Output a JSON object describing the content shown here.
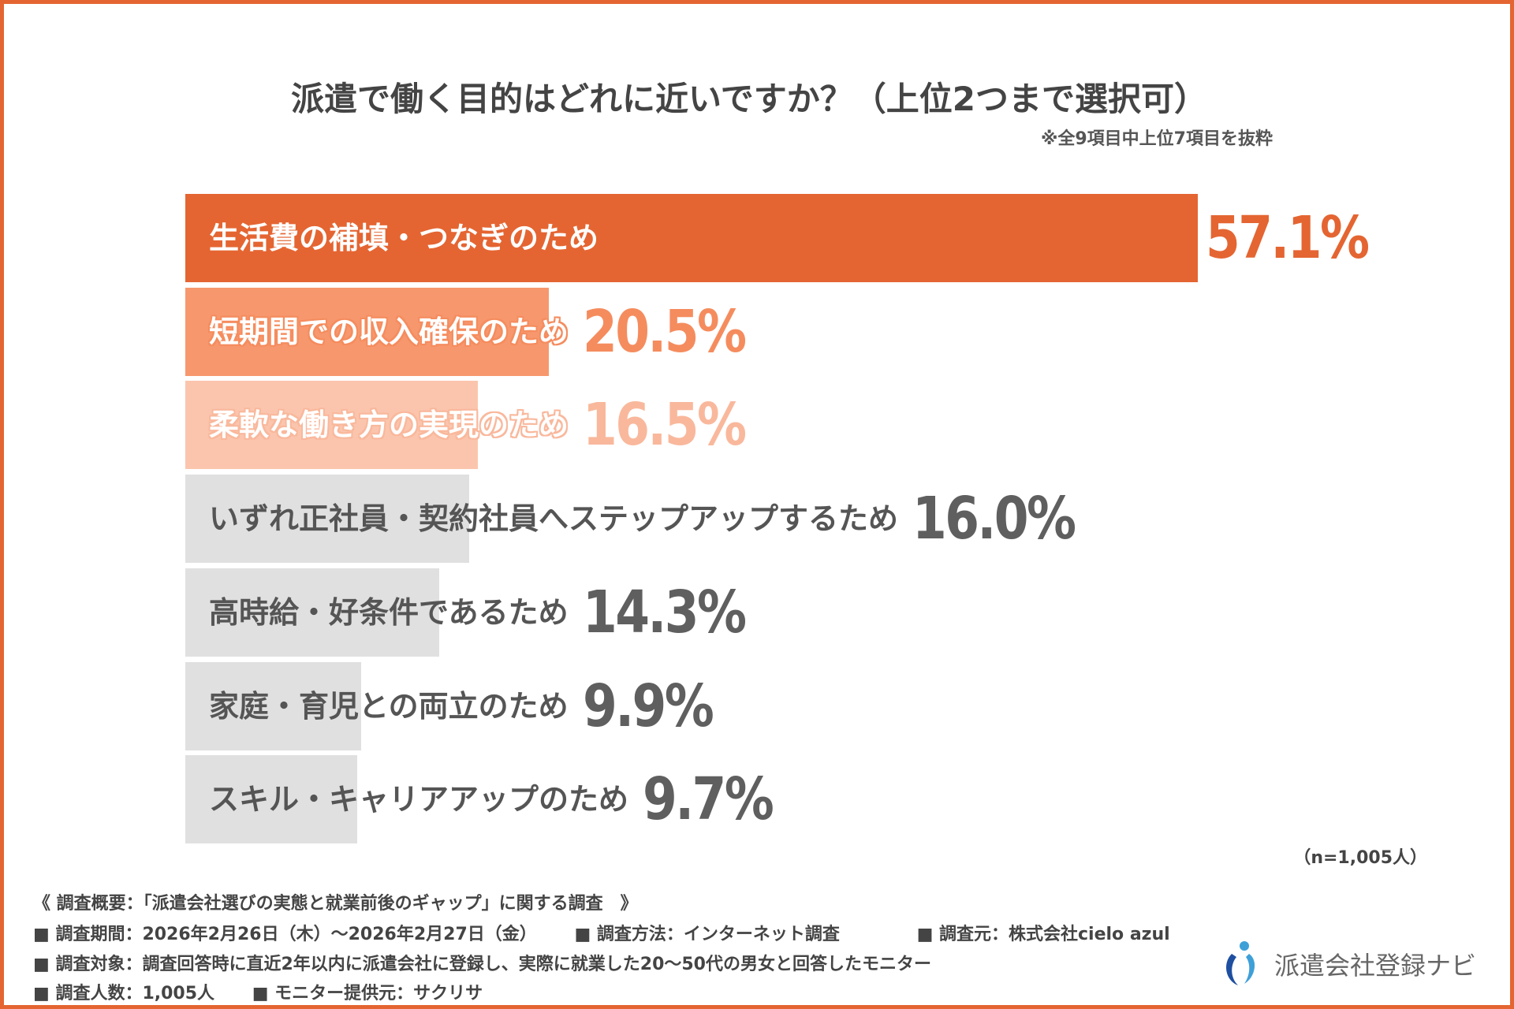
{
  "title": "派遣で働く目的はどれに近いですか？（上位2つまで選択可）",
  "note": "※全9項目中上位7項目を抜粋",
  "sample": "（n=1,005人）",
  "chart_data": {
    "type": "bar",
    "orientation": "horizontal",
    "title": "派遣で働く目的はどれに近いですか？（上位2つまで選択可）",
    "categories": [
      "生活費の補填・つなぎのため",
      "短期間での収入確保のため",
      "柔軟な働き方の実現のため",
      "いずれ正社員・契約社員へステップアップするため",
      "高時給・好条件であるため",
      "家庭・育児との両立のため",
      "スキル・キャリアアップのため"
    ],
    "values": [
      57.1,
      20.5,
      16.5,
      16.0,
      14.3,
      9.9,
      9.7
    ],
    "labels": [
      "57.1%",
      "20.5%",
      "16.5%",
      "16.0%",
      "14.3%",
      "9.9%",
      "9.7%"
    ],
    "unit": "%",
    "bar_colors": [
      "#E46532",
      "#F7976D",
      "#FBC5AD",
      "#E0E0E0",
      "#E0E0E0",
      "#E0E0E0",
      "#E0E0E0"
    ],
    "value_colors": [
      "#E46532",
      "#F58C5E",
      "#F9B89C",
      "#5f5f5f",
      "#5f5f5f",
      "#5f5f5f",
      "#5f5f5f"
    ],
    "label_colors": [
      "#ffffff",
      "#ffffff",
      "#ffffff",
      "#555555",
      "#555555",
      "#555555",
      "#555555"
    ],
    "grid": false,
    "legend": "none"
  },
  "footer": {
    "heading": "《 調査概要：「派遣会社選びの実態と就業前後のギャップ」に関する調査　》",
    "period": "■ 調査期間：2026年2月26日（木）～2026年2月27日（金）",
    "method": "■ 調査方法：インターネット調査",
    "source": "■ 調査元：株式会社cielo azul",
    "target": "■ 調査対象：調査回答時に直近2年以内に派遣会社に登録し、実際に就業した20～50代の男女と回答したモニター",
    "count": "■ 調査人数：1,005人",
    "provider": "■ モニター提供元：サクリサ"
  },
  "logo": {
    "text": "派遣会社登録ナビ",
    "colors": [
      "#1E4FA0",
      "#3FA0D8"
    ]
  }
}
